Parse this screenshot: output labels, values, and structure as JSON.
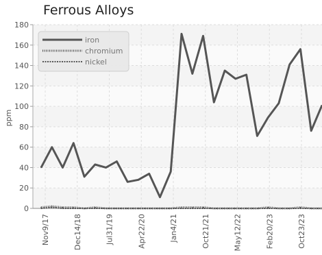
{
  "chart_data": {
    "type": "line",
    "title": "Ferrous Alloys",
    "ylabel": "ppm",
    "xlabel": "",
    "ylim": [
      0,
      180
    ],
    "yticks": [
      0,
      20,
      40,
      60,
      80,
      100,
      120,
      140,
      160,
      180
    ],
    "x_tick_labels": [
      "Nov9/17",
      "Dec14/18",
      "Jul31/19",
      "Apr22/20",
      "Jan4/21",
      "Oct21/21",
      "May12/22",
      "Feb20/23",
      "Oct23/23"
    ],
    "grid": true,
    "legend_position": "top-left",
    "series": [
      {
        "name": "iron",
        "color": "#555555",
        "style": "solid",
        "values": [
          40,
          60,
          40,
          64,
          31,
          43,
          40,
          46,
          26,
          28,
          34,
          11,
          36,
          171,
          132,
          169,
          104,
          135,
          127,
          131,
          71,
          89,
          103,
          141,
          156,
          76,
          101
        ]
      },
      {
        "name": "chromium",
        "color": "#555555",
        "style": "dotted",
        "values": [
          1,
          2,
          1,
          1,
          0,
          1,
          0,
          0,
          0,
          0,
          0,
          0,
          0,
          1,
          1,
          1,
          0,
          0,
          0,
          0,
          0,
          1,
          0,
          0,
          1,
          0,
          0
        ]
      },
      {
        "name": "nickel",
        "color": "#555555",
        "style": "dashed",
        "values": [
          0,
          1,
          0,
          0,
          0,
          0,
          0,
          0,
          0,
          0,
          0,
          0,
          0,
          0,
          0,
          0,
          0,
          0,
          0,
          0,
          0,
          0,
          0,
          0,
          0,
          0,
          0
        ]
      }
    ]
  }
}
